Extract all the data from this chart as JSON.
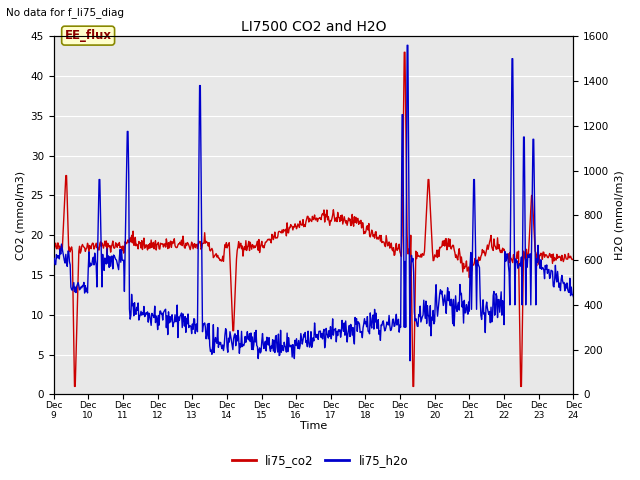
{
  "title": "LI7500 CO2 and H2O",
  "top_left_text": "No data for f_li75_diag",
  "annotation_box": "EE_flux",
  "xlabel": "Time",
  "ylabel_left": "CO2 (mmol/m3)",
  "ylabel_right": "H2O (mmol/m3)",
  "ylim_left": [
    0,
    45
  ],
  "ylim_right": [
    0,
    1600
  ],
  "yticks_left": [
    0,
    5,
    10,
    15,
    20,
    25,
    30,
    35,
    40,
    45
  ],
  "yticks_right": [
    0,
    200,
    400,
    600,
    800,
    1000,
    1200,
    1400,
    1600
  ],
  "xtick_labels": [
    "Dec 9",
    "Dec 10",
    "Dec 11",
    "Dec 12",
    "Dec 13",
    "Dec 14",
    "Dec 15",
    "Dec 16",
    "Dec 17",
    "Dec 18",
    "Dec 19",
    "Dec 20",
    "Dec 21",
    "Dec 22",
    "Dec 23",
    "Dec 24"
  ],
  "background_color": "#ffffff",
  "plot_bg_color": "#e8e8e8",
  "grid_color": "#ffffff",
  "legend_entries": [
    "li75_co2",
    "li75_h2o"
  ],
  "legend_colors": [
    "#cc0000",
    "#0000cc"
  ],
  "co2_color": "#cc0000",
  "h2o_color": "#0000cc",
  "linewidth": 1.0
}
